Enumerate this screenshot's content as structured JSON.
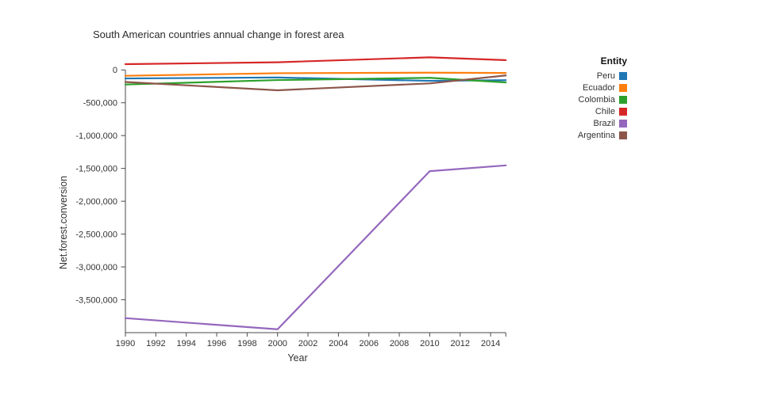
{
  "title": "South American countries annual change in forest area",
  "axes": {
    "x_label": "Year",
    "y_label": "Net.forest.conversion",
    "x_ticks": [
      1990,
      1992,
      1994,
      1996,
      1998,
      2000,
      2002,
      2004,
      2006,
      2008,
      2010,
      2012,
      2014
    ],
    "x_end_tick": 2015,
    "y_ticks": [
      0,
      -500000,
      -1000000,
      -1500000,
      -2000000,
      -2500000,
      -3000000,
      -3500000
    ],
    "y_tick_labels": [
      "0",
      "-500,000",
      "-1,000,000",
      "-1,500,000",
      "-2,000,000",
      "-2,500,000",
      "-3,000,000",
      "-3,500,000"
    ]
  },
  "legend": {
    "title": "Entity",
    "items": [
      {
        "label": "Peru",
        "color": "#1f77b4"
      },
      {
        "label": "Ecuador",
        "color": "#ff7f0e"
      },
      {
        "label": "Colombia",
        "color": "#2ca02c"
      },
      {
        "label": "Chile",
        "color": "#d62728"
      },
      {
        "label": "Brazil",
        "color": "#9467bd"
      },
      {
        "label": "Argentina",
        "color": "#8c564b"
      }
    ]
  },
  "chart_data": {
    "type": "line",
    "title": "South American countries annual change in forest area",
    "xlabel": "Year",
    "ylabel": "Net.forest.conversion",
    "x": [
      1990,
      2000,
      2010,
      2015
    ],
    "series": [
      {
        "name": "Peru",
        "color": "#1f77b4",
        "values": [
          -130000,
          -115000,
          -166000,
          -156000
        ]
      },
      {
        "name": "Ecuador",
        "color": "#ff7f0e",
        "values": [
          -89000,
          -50000,
          -42000,
          -46000
        ]
      },
      {
        "name": "Colombia",
        "color": "#2ca02c",
        "values": [
          -222000,
          -154000,
          -120000,
          -190000
        ]
      },
      {
        "name": "Chile",
        "color": "#d62728",
        "values": [
          88000,
          117000,
          192000,
          149000
        ]
      },
      {
        "name": "Brazil",
        "color": "#9467bd",
        "values": [
          -3780000,
          -3950000,
          -1542000,
          -1454000
        ]
      },
      {
        "name": "Argentina",
        "color": "#8c564b",
        "values": [
          -183000,
          -310000,
          -205000,
          -84000
        ]
      }
    ],
    "xlim": [
      1990,
      2015
    ],
    "ylim": [
      -4003000,
      200000
    ],
    "grid": false,
    "legend_position": "right",
    "legend_title": "Entity"
  }
}
